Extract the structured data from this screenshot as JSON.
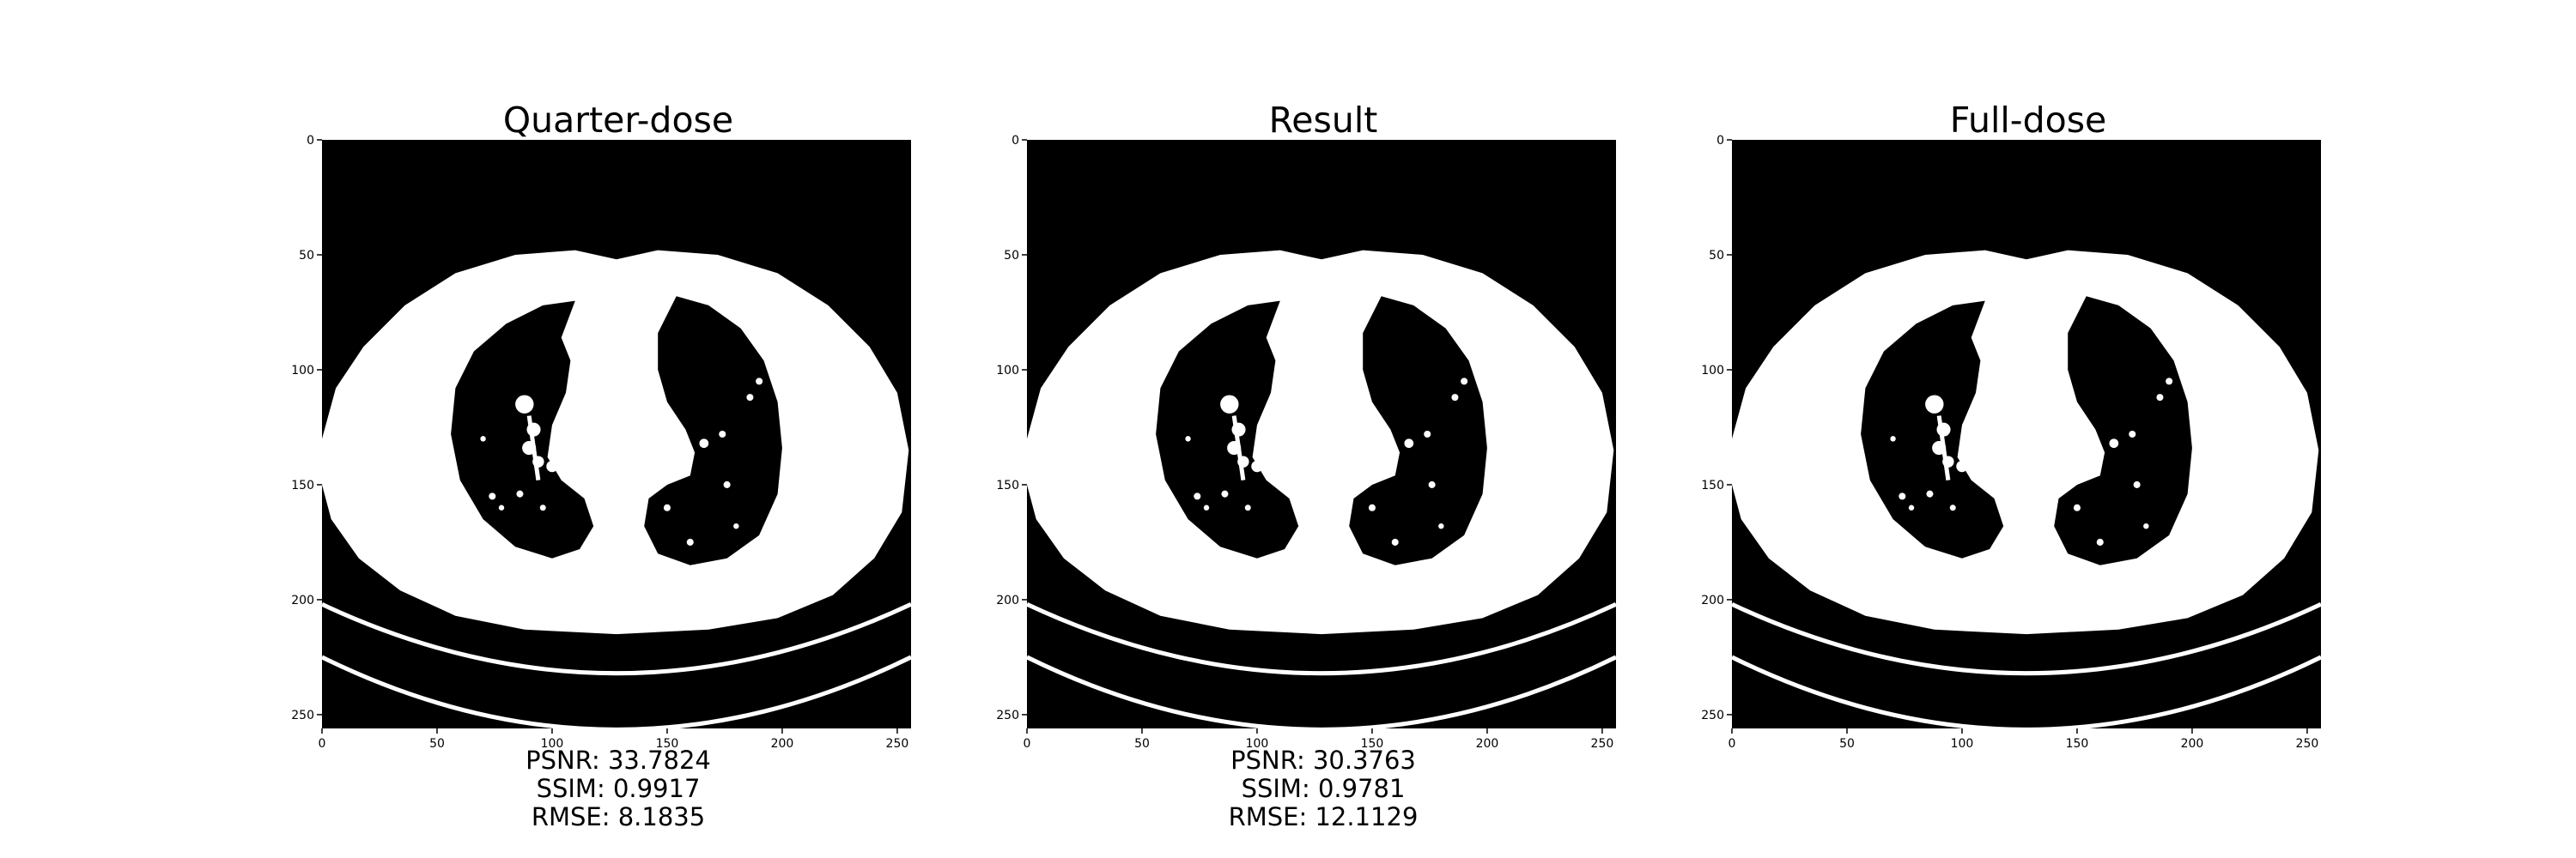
{
  "colors": {
    "background": "#ffffff",
    "image_black": "#000000",
    "image_white": "#ffffff"
  },
  "axis_ticks": [
    "0",
    "50",
    "100",
    "150",
    "200",
    "250"
  ],
  "panels": [
    {
      "title": "Quarter-dose",
      "metrics": {
        "psnr": "PSNR: 33.7824",
        "ssim": "SSIM: 0.9917",
        "rmse": "RMSE: 8.1835"
      }
    },
    {
      "title": "Result",
      "metrics": {
        "psnr": "PSNR: 30.3763",
        "ssim": "SSIM: 0.9781",
        "rmse": "RMSE: 12.1129"
      }
    },
    {
      "title": "Full-dose",
      "metrics": {
        "psnr": "",
        "ssim": "",
        "rmse": ""
      }
    }
  ]
}
